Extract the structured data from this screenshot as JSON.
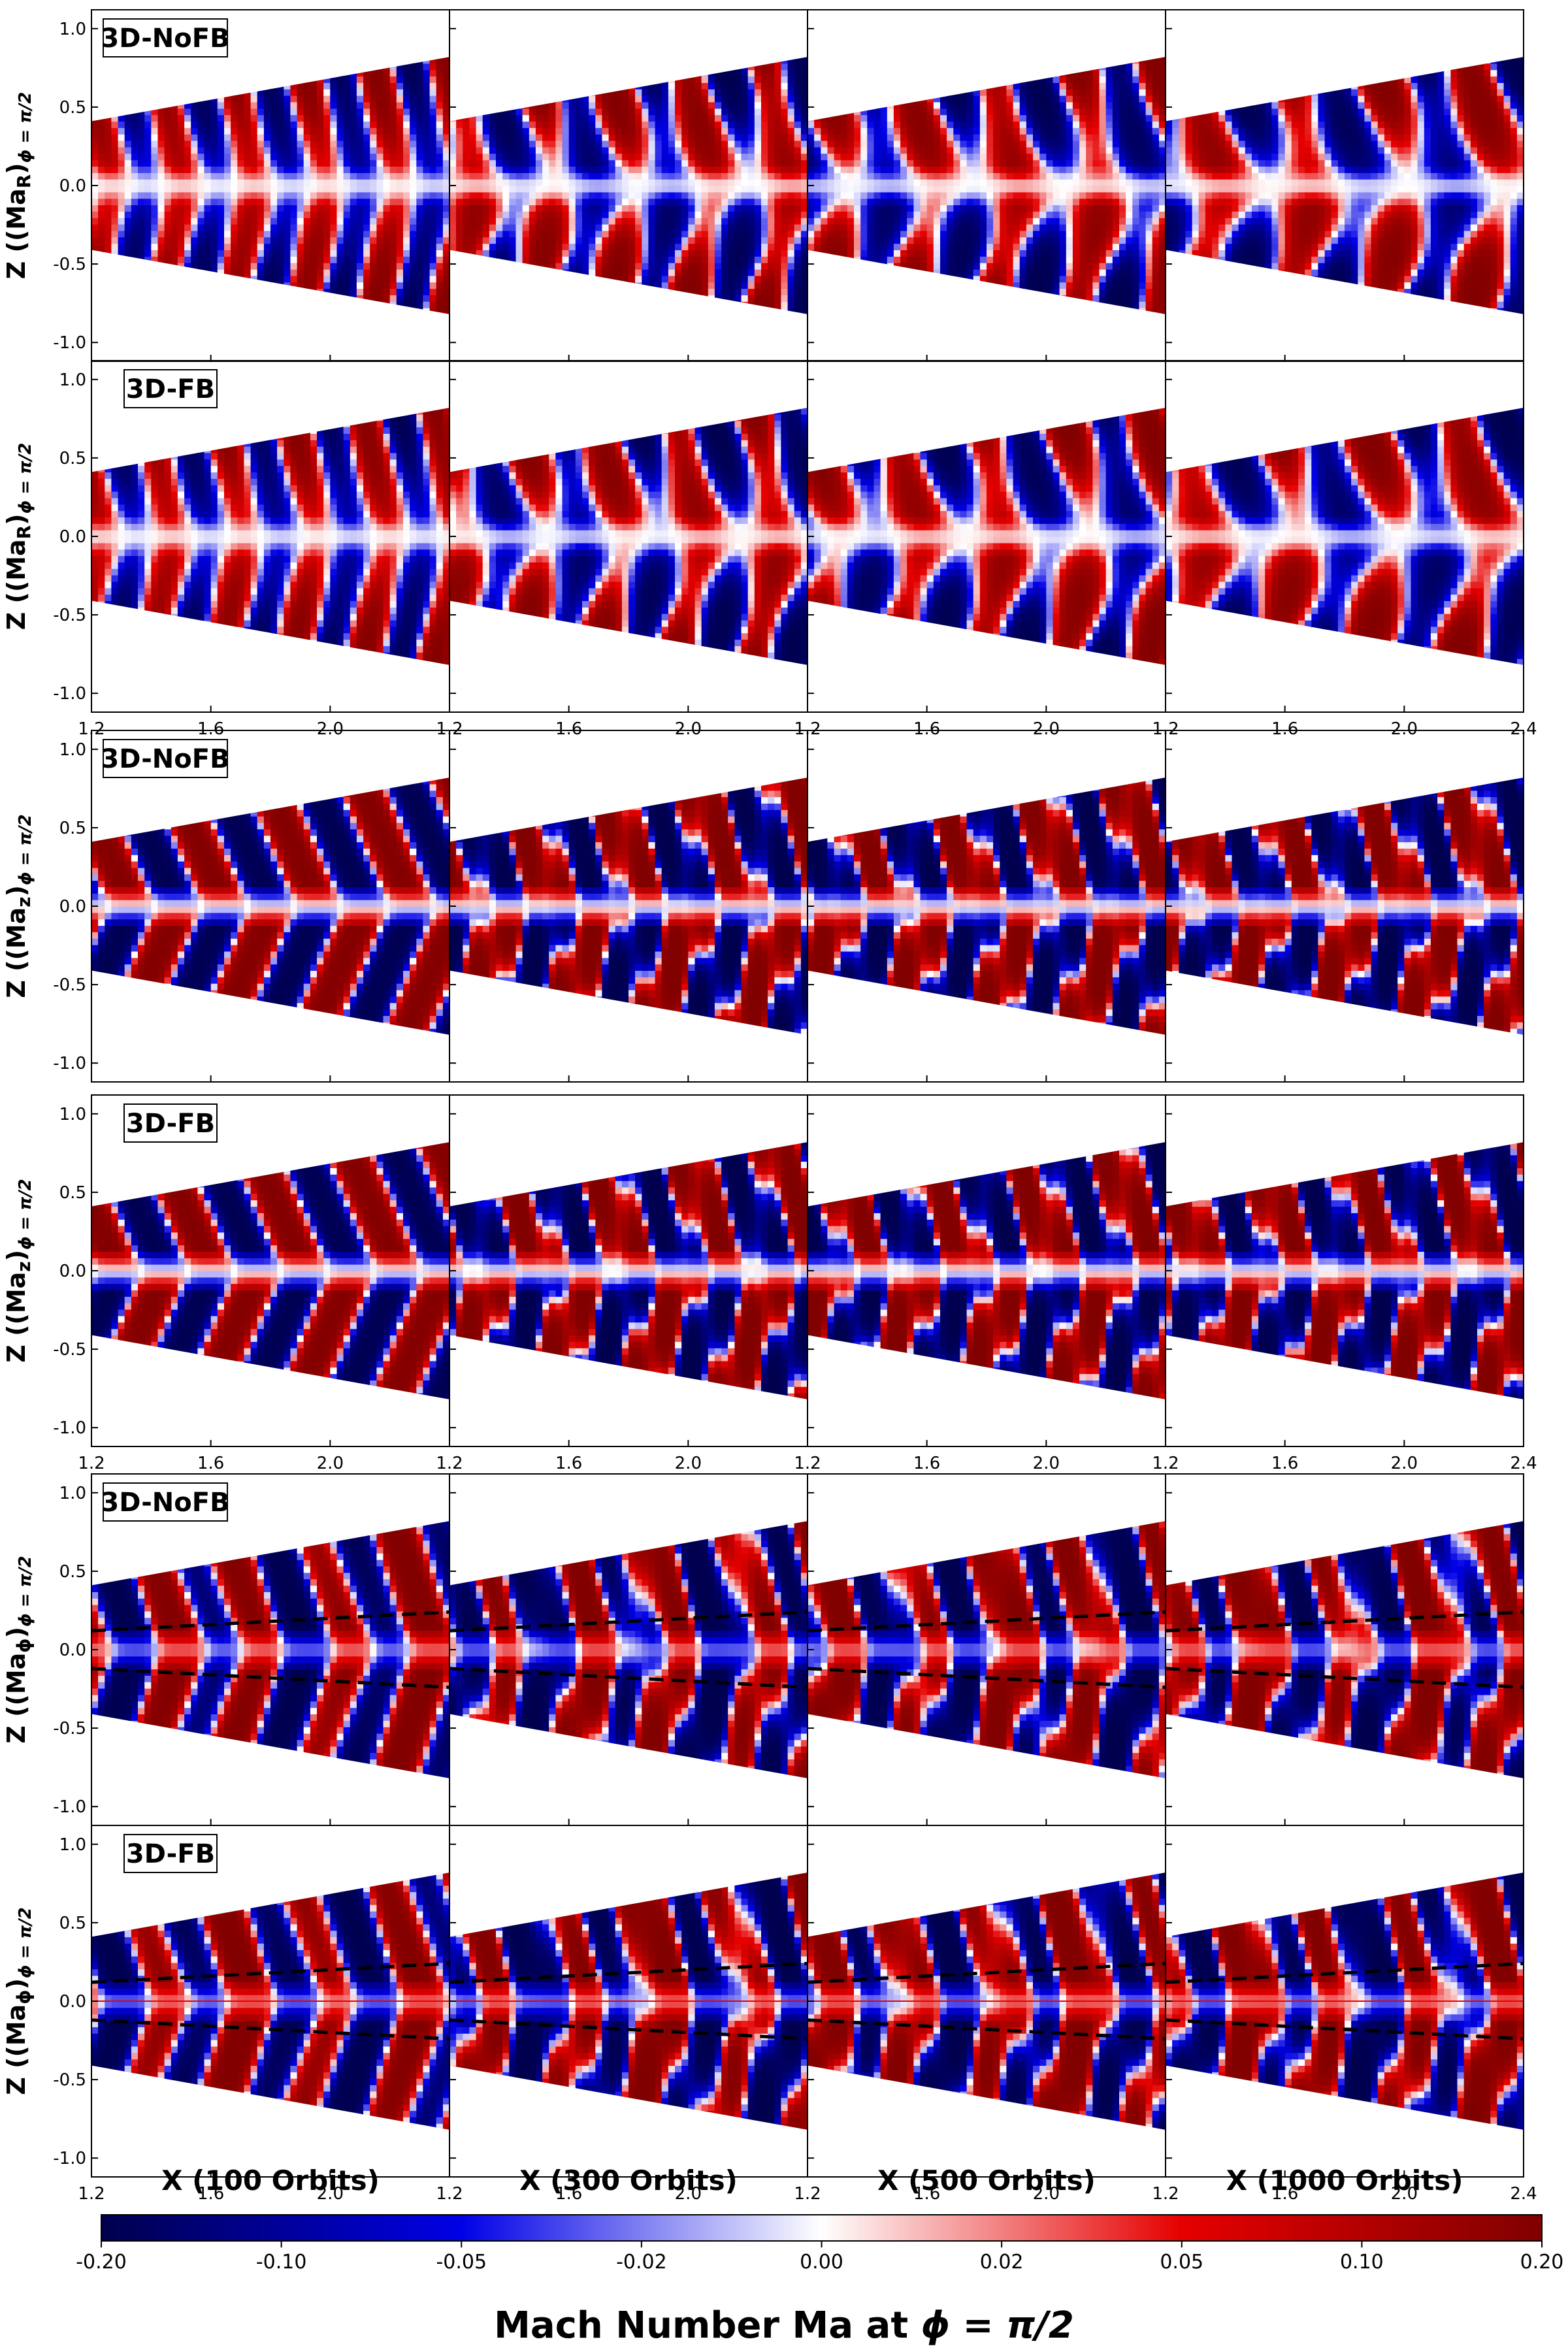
{
  "chart_data": {
    "type": "heatmap",
    "figure_grid": {
      "rows": 6,
      "columns": 4
    },
    "x_range": [
      1.2,
      2.4
    ],
    "y_range": [
      -1.12,
      1.12
    ],
    "x_ticks_per_panel": [
      "1.2",
      "1.6",
      "2.0"
    ],
    "x_tick_last": "2.4",
    "y_ticks": [
      "1.0",
      "0.5",
      "0.0",
      "-0.5",
      "-1.0"
    ],
    "y_tick_values": [
      1.0,
      0.5,
      0.0,
      -0.5,
      -1.0
    ],
    "x_axis_labels": [
      "X (100 Orbits)",
      "X (300 Orbits)",
      "X (500 Orbits)",
      "X (1000 Orbits)"
    ],
    "rows": [
      {
        "ylabel": "Z ((Ma",
        "ylabel_sub": "R",
        "ylabel_tail": ")",
        "ylabel_sub2": "ϕ = π/2",
        "run": "3D-NoFB",
        "variable": "R",
        "dashed_lines": false,
        "midplane_line": false
      },
      {
        "ylabel": "Z ((Ma",
        "ylabel_sub": "R",
        "ylabel_tail": ")",
        "ylabel_sub2": "ϕ = π/2",
        "run": "3D-FB",
        "variable": "R",
        "dashed_lines": false,
        "midplane_line": false
      },
      {
        "ylabel": "Z ((Ma",
        "ylabel_sub": "z",
        "ylabel_tail": ")",
        "ylabel_sub2": "ϕ = π/2",
        "run": "3D-NoFB",
        "variable": "z",
        "dashed_lines": false,
        "midplane_line": false
      },
      {
        "ylabel": "Z ((Ma",
        "ylabel_sub": "z",
        "ylabel_tail": ")",
        "ylabel_sub2": "ϕ = π/2",
        "run": "3D-FB",
        "variable": "z",
        "dashed_lines": false,
        "midplane_line": false
      },
      {
        "ylabel": "Z ((Ma",
        "ylabel_sub": "ϕ",
        "ylabel_tail": ")",
        "ylabel_sub2": "ϕ = π/2",
        "run": "3D-NoFB",
        "variable": "phi",
        "dashed_lines": true,
        "midplane_line": false
      },
      {
        "ylabel": "Z ((Ma",
        "ylabel_sub": "ϕ",
        "ylabel_tail": ")",
        "ylabel_sub2": "ϕ = π/2",
        "run": "3D-FB",
        "variable": "phi",
        "dashed_lines": true,
        "midplane_line": true
      }
    ],
    "colorbar": {
      "title_main": "Mach Number Ma at ",
      "title_sym": "ϕ = π/2",
      "range": [
        -0.2,
        0.2
      ],
      "scale": "symlog",
      "tick_values": [
        -0.2,
        -0.1,
        -0.05,
        -0.02,
        0.0,
        0.02,
        0.05,
        0.1,
        0.2
      ],
      "tick_labels": [
        "-0.20",
        "-0.10",
        "-0.05",
        "-0.02",
        "0.00",
        "0.02",
        "0.05",
        "0.10",
        "0.20"
      ],
      "colors": [
        "#00004d",
        "#0000e6",
        "#ffffff",
        "#e60000",
        "#800000"
      ]
    }
  }
}
